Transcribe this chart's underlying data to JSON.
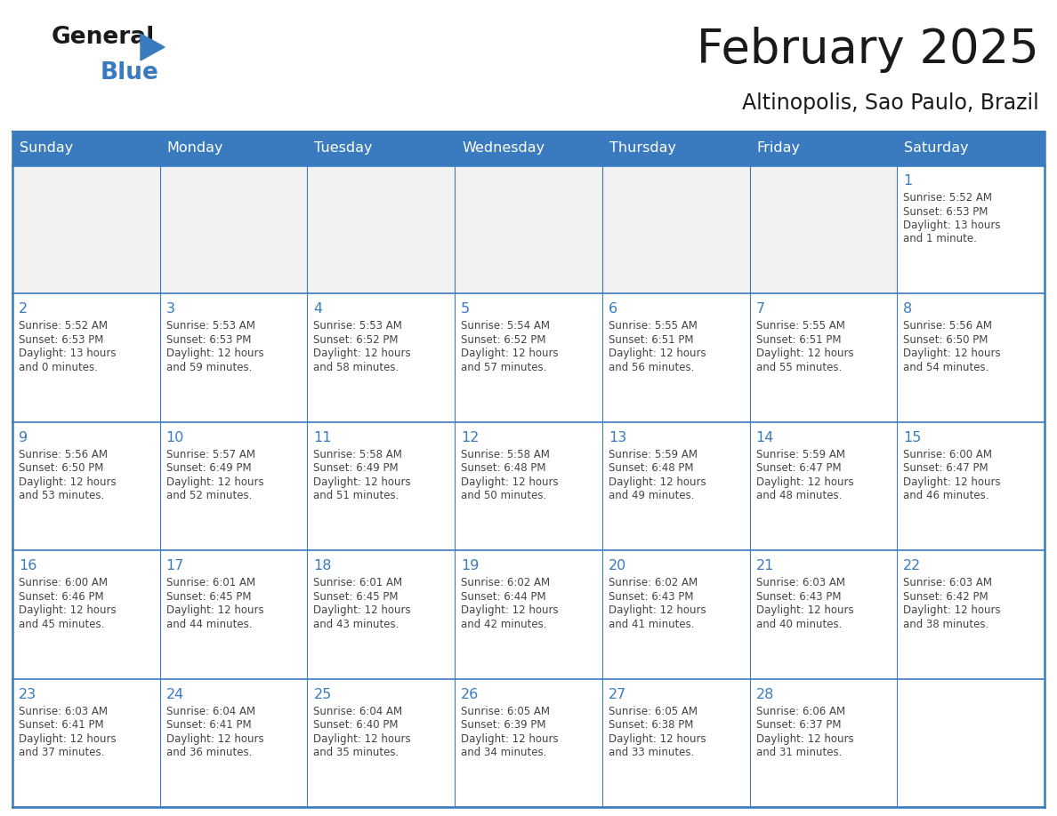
{
  "title": "February 2025",
  "subtitle": "Altinopolis, Sao Paulo, Brazil",
  "header_bg": "#3a7bbf",
  "header_text": "#ffffff",
  "cell_bg_white": "#ffffff",
  "cell_bg_gray": "#f2f2f2",
  "border_color": "#3a7bbf",
  "border_color_light": "#aaaaaa",
  "day_headers": [
    "Sunday",
    "Monday",
    "Tuesday",
    "Wednesday",
    "Thursday",
    "Friday",
    "Saturday"
  ],
  "title_color": "#1a1a1a",
  "subtitle_color": "#1a1a1a",
  "day_num_color": "#3a7bbf",
  "text_color": "#444444",
  "logo_general_color": "#1a1a1a",
  "logo_blue_color": "#3a7bbf",
  "weeks": [
    [
      {
        "day": 0,
        "info": ""
      },
      {
        "day": 0,
        "info": ""
      },
      {
        "day": 0,
        "info": ""
      },
      {
        "day": 0,
        "info": ""
      },
      {
        "day": 0,
        "info": ""
      },
      {
        "day": 0,
        "info": ""
      },
      {
        "day": 1,
        "info": "Sunrise: 5:52 AM\nSunset: 6:53 PM\nDaylight: 13 hours\nand 1 minute."
      }
    ],
    [
      {
        "day": 2,
        "info": "Sunrise: 5:52 AM\nSunset: 6:53 PM\nDaylight: 13 hours\nand 0 minutes."
      },
      {
        "day": 3,
        "info": "Sunrise: 5:53 AM\nSunset: 6:53 PM\nDaylight: 12 hours\nand 59 minutes."
      },
      {
        "day": 4,
        "info": "Sunrise: 5:53 AM\nSunset: 6:52 PM\nDaylight: 12 hours\nand 58 minutes."
      },
      {
        "day": 5,
        "info": "Sunrise: 5:54 AM\nSunset: 6:52 PM\nDaylight: 12 hours\nand 57 minutes."
      },
      {
        "day": 6,
        "info": "Sunrise: 5:55 AM\nSunset: 6:51 PM\nDaylight: 12 hours\nand 56 minutes."
      },
      {
        "day": 7,
        "info": "Sunrise: 5:55 AM\nSunset: 6:51 PM\nDaylight: 12 hours\nand 55 minutes."
      },
      {
        "day": 8,
        "info": "Sunrise: 5:56 AM\nSunset: 6:50 PM\nDaylight: 12 hours\nand 54 minutes."
      }
    ],
    [
      {
        "day": 9,
        "info": "Sunrise: 5:56 AM\nSunset: 6:50 PM\nDaylight: 12 hours\nand 53 minutes."
      },
      {
        "day": 10,
        "info": "Sunrise: 5:57 AM\nSunset: 6:49 PM\nDaylight: 12 hours\nand 52 minutes."
      },
      {
        "day": 11,
        "info": "Sunrise: 5:58 AM\nSunset: 6:49 PM\nDaylight: 12 hours\nand 51 minutes."
      },
      {
        "day": 12,
        "info": "Sunrise: 5:58 AM\nSunset: 6:48 PM\nDaylight: 12 hours\nand 50 minutes."
      },
      {
        "day": 13,
        "info": "Sunrise: 5:59 AM\nSunset: 6:48 PM\nDaylight: 12 hours\nand 49 minutes."
      },
      {
        "day": 14,
        "info": "Sunrise: 5:59 AM\nSunset: 6:47 PM\nDaylight: 12 hours\nand 48 minutes."
      },
      {
        "day": 15,
        "info": "Sunrise: 6:00 AM\nSunset: 6:47 PM\nDaylight: 12 hours\nand 46 minutes."
      }
    ],
    [
      {
        "day": 16,
        "info": "Sunrise: 6:00 AM\nSunset: 6:46 PM\nDaylight: 12 hours\nand 45 minutes."
      },
      {
        "day": 17,
        "info": "Sunrise: 6:01 AM\nSunset: 6:45 PM\nDaylight: 12 hours\nand 44 minutes."
      },
      {
        "day": 18,
        "info": "Sunrise: 6:01 AM\nSunset: 6:45 PM\nDaylight: 12 hours\nand 43 minutes."
      },
      {
        "day": 19,
        "info": "Sunrise: 6:02 AM\nSunset: 6:44 PM\nDaylight: 12 hours\nand 42 minutes."
      },
      {
        "day": 20,
        "info": "Sunrise: 6:02 AM\nSunset: 6:43 PM\nDaylight: 12 hours\nand 41 minutes."
      },
      {
        "day": 21,
        "info": "Sunrise: 6:03 AM\nSunset: 6:43 PM\nDaylight: 12 hours\nand 40 minutes."
      },
      {
        "day": 22,
        "info": "Sunrise: 6:03 AM\nSunset: 6:42 PM\nDaylight: 12 hours\nand 38 minutes."
      }
    ],
    [
      {
        "day": 23,
        "info": "Sunrise: 6:03 AM\nSunset: 6:41 PM\nDaylight: 12 hours\nand 37 minutes."
      },
      {
        "day": 24,
        "info": "Sunrise: 6:04 AM\nSunset: 6:41 PM\nDaylight: 12 hours\nand 36 minutes."
      },
      {
        "day": 25,
        "info": "Sunrise: 6:04 AM\nSunset: 6:40 PM\nDaylight: 12 hours\nand 35 minutes."
      },
      {
        "day": 26,
        "info": "Sunrise: 6:05 AM\nSunset: 6:39 PM\nDaylight: 12 hours\nand 34 minutes."
      },
      {
        "day": 27,
        "info": "Sunrise: 6:05 AM\nSunset: 6:38 PM\nDaylight: 12 hours\nand 33 minutes."
      },
      {
        "day": 28,
        "info": "Sunrise: 6:06 AM\nSunset: 6:37 PM\nDaylight: 12 hours\nand 31 minutes."
      },
      {
        "day": 0,
        "info": ""
      }
    ]
  ]
}
